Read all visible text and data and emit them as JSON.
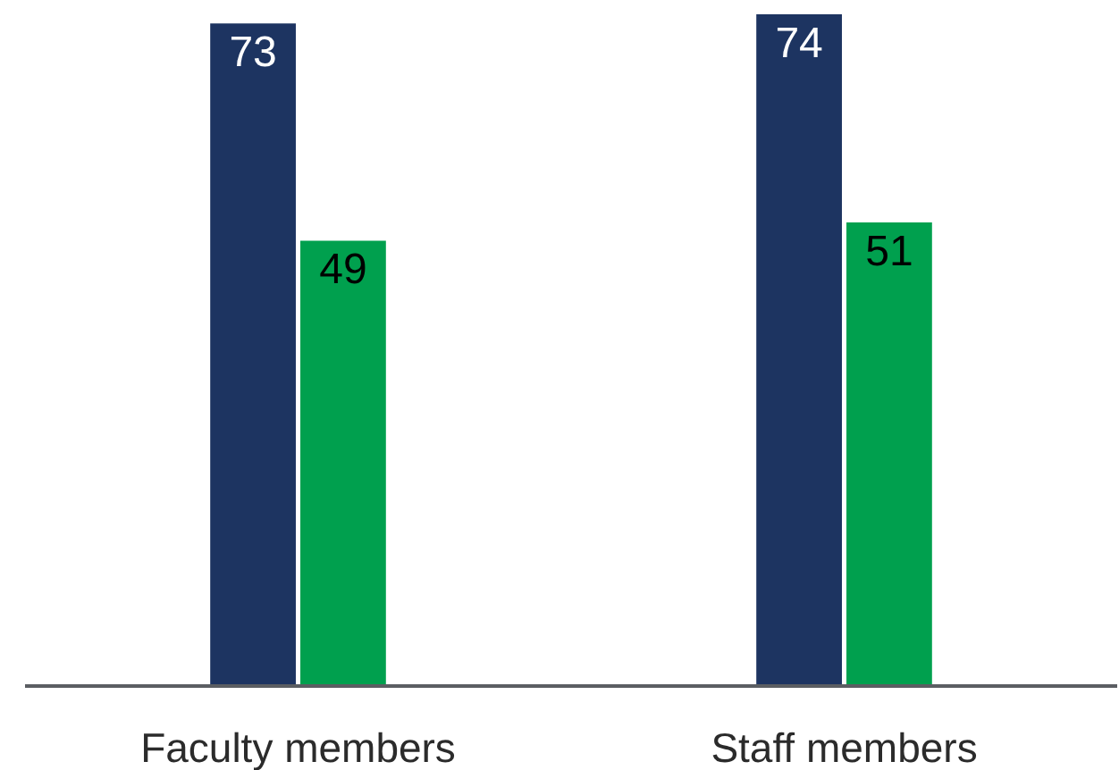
{
  "chart_data": {
    "type": "bar",
    "categories": [
      "Faculty members",
      "Staff members"
    ],
    "series": [
      {
        "color": "#1d3461",
        "values": [
          73,
          74
        ]
      },
      {
        "color": "#00a04e",
        "values": [
          49,
          51
        ]
      }
    ],
    "data_labels": true,
    "tick_labels": "x"
  }
}
